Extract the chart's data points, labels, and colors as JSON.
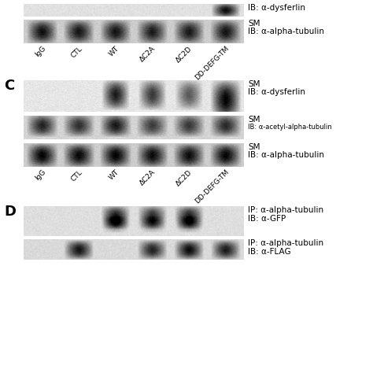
{
  "background_color": "#ffffff",
  "fig_width": 4.74,
  "fig_height": 4.74,
  "dpi": 100,
  "x_labels": [
    "IgG",
    "CTL",
    "WT",
    "ΔC2A",
    "ΔC2D",
    "DD-DEFG-TM"
  ],
  "panel_C_annotations": [
    [
      "SM",
      "IB: α-dysferlin"
    ],
    [
      "SM",
      "IB: α-acetyl-alpha-tubulin"
    ],
    [
      "SM",
      "IB: α-alpha-tubulin"
    ]
  ],
  "panel_D_annotations": [
    [
      "IP: α-alpha-tubulin",
      "IB: α-GFP"
    ],
    [
      "IP: α-alpha-tubulin",
      "IB: α-FLAG"
    ]
  ],
  "top_panel_annotations": [
    [
      "IB: α-dysferlin"
    ],
    [
      "SM",
      "IB: α-alpha-tubulin"
    ]
  ]
}
